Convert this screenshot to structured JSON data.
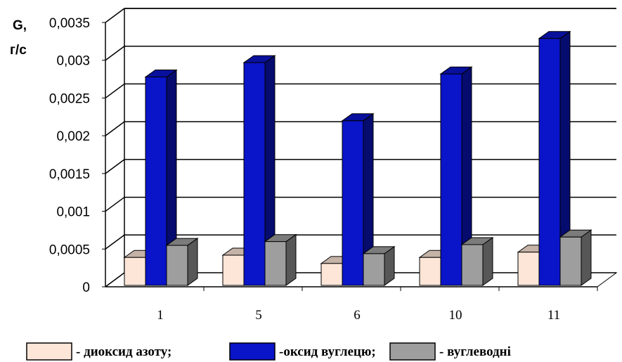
{
  "chart_data": {
    "type": "bar",
    "subtype": "3d-clustered-column",
    "ylabel_line1": "G,",
    "ylabel_line2": "г/с",
    "ylim": [
      0,
      0.0035
    ],
    "yticks": [
      "0",
      "0,0005",
      "0,001",
      "0,0015",
      "0,002",
      "0,0025",
      "0,003",
      "0,0035"
    ],
    "categories": [
      "1",
      "5",
      "6",
      "10",
      "11"
    ],
    "grid": true,
    "legend_position": "bottom",
    "series": [
      {
        "name": "- диоксид азоту;",
        "color": "#fde6d8",
        "values": [
          0.00037,
          0.0004,
          0.00029,
          0.00037,
          0.00044
        ]
      },
      {
        "name": "-оксид вуглецю;",
        "color": "#0a14c8",
        "values": [
          0.00276,
          0.00295,
          0.00218,
          0.0028,
          0.00327
        ]
      },
      {
        "name": "- вуглеводні",
        "color": "#9e9e9e",
        "values": [
          0.00053,
          0.00058,
          0.00042,
          0.00054,
          0.00064
        ]
      }
    ]
  }
}
